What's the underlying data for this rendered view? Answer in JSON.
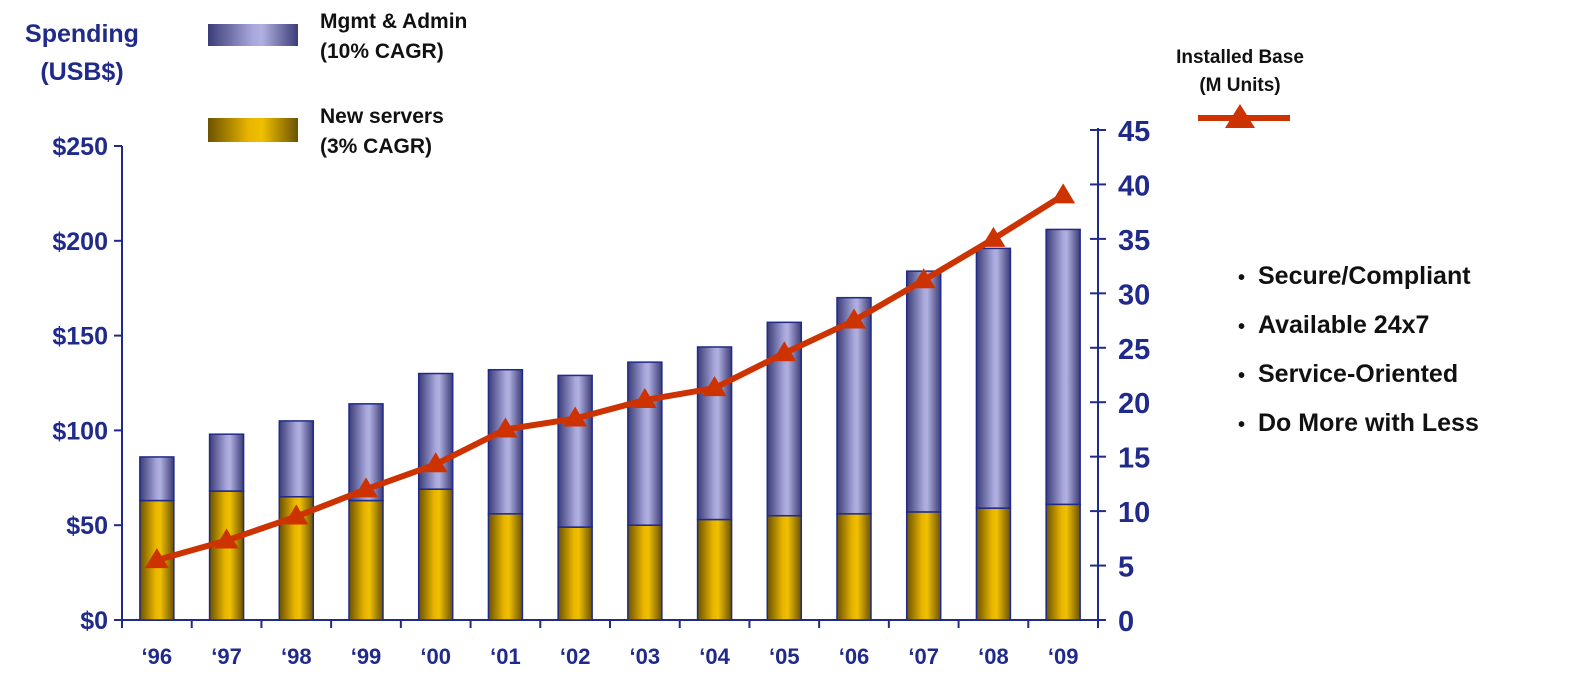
{
  "chart_data": {
    "type": "bar",
    "stacked": true,
    "categories": [
      "‘96",
      "‘97",
      "‘98",
      "‘99",
      "‘00",
      "‘01",
      "‘02",
      "‘03",
      "‘04",
      "‘05",
      "‘06",
      "‘07",
      "‘08",
      "‘09"
    ],
    "series": [
      {
        "name": "New servers (3% CAGR)",
        "role": "bar-bottom",
        "color": "#d4a000",
        "values": [
          63,
          68,
          65,
          63,
          69,
          56,
          49,
          50,
          53,
          55,
          56,
          57,
          59,
          61
        ]
      },
      {
        "name": "Mgmt & Admin (10% CAGR)",
        "role": "bar-top",
        "color": "#8e8ec8",
        "values": [
          23,
          30,
          40,
          51,
          61,
          76,
          80,
          86,
          91,
          102,
          114,
          127,
          137,
          145
        ]
      },
      {
        "name": "Installed Base (M Units)",
        "role": "line",
        "axis": "right",
        "color": "#cc3300",
        "values": [
          5.5,
          7.3,
          9.5,
          12,
          14.3,
          17.5,
          18.5,
          20.2,
          21.3,
          24.5,
          27.5,
          31.2,
          35,
          39
        ]
      }
    ],
    "y_left": {
      "title_lines": [
        "Spending",
        "(USB$)"
      ],
      "range": [
        0,
        250
      ],
      "ticks": [
        0,
        50,
        100,
        150,
        200,
        250
      ],
      "tick_labels": [
        "$0",
        "$50",
        "$100",
        "$150",
        "$200",
        "$250"
      ]
    },
    "y_right": {
      "title_lines": [
        "Installed Base",
        "(M Units)"
      ],
      "range": [
        0,
        45
      ],
      "ticks": [
        0,
        5,
        10,
        15,
        20,
        25,
        30,
        35,
        40,
        45
      ],
      "tick_labels": [
        "0",
        "5",
        "10",
        "15",
        "20",
        "25",
        "30",
        "35",
        "40",
        "45"
      ]
    },
    "legend": {
      "placement": "top-left",
      "items": [
        {
          "lines": [
            "Mgmt & Admin",
            "(10% CAGR)"
          ],
          "color": "#8e8ec8"
        },
        {
          "lines": [
            "New servers",
            "(3% CAGR)"
          ],
          "color": "#d4a000"
        }
      ]
    },
    "grid": false
  },
  "bullets": [
    "Secure/Compliant",
    "Available 24x7",
    "Service-Oriented",
    "Do More with Less"
  ]
}
